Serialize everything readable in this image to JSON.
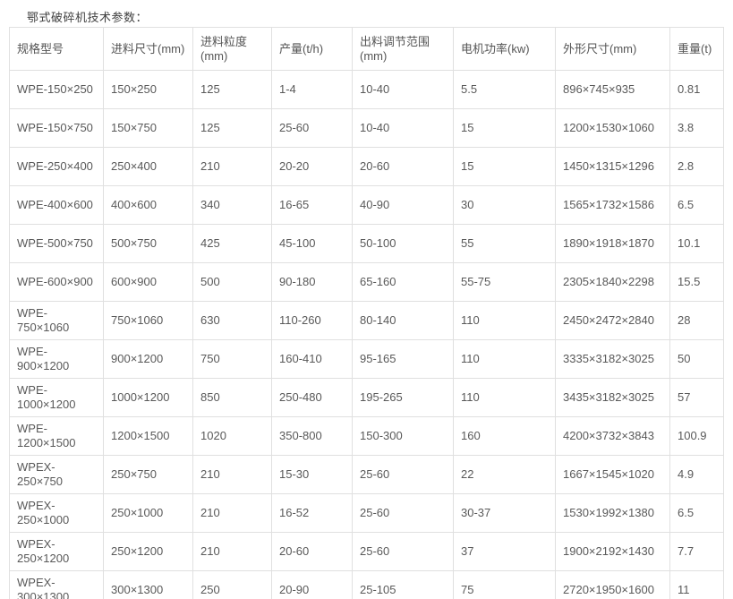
{
  "page": {
    "title": "鄂式破碎机技术参数："
  },
  "colors": {
    "background": "#ffffff",
    "border": "#e0e0e0",
    "text": "#595959",
    "title_text": "#404040"
  },
  "table": {
    "headers": [
      "规格型号",
      "进料尺寸(mm)",
      "进料粒度(mm)",
      "产量(t/h)",
      "出料调节范围(mm)",
      "电机功率(kw)",
      "外形尺寸(mm)",
      "重量(t)"
    ],
    "rows": [
      [
        "WPE-150×250",
        "150×250",
        "125",
        "1-4",
        "10-40",
        "5.5",
        "896×745×935",
        "0.81"
      ],
      [
        "WPE-150×750",
        "150×750",
        "125",
        "25-60",
        "10-40",
        "15",
        "1200×1530×1060",
        "3.8"
      ],
      [
        "WPE-250×400",
        "250×400",
        "210",
        "20-20",
        "20-60",
        "15",
        "1450×1315×1296",
        "2.8"
      ],
      [
        "WPE-400×600",
        "400×600",
        "340",
        "16-65",
        "40-90",
        "30",
        "1565×1732×1586",
        "6.5"
      ],
      [
        "WPE-500×750",
        "500×750",
        "425",
        "45-100",
        "50-100",
        "55",
        "1890×1918×1870",
        "10.1"
      ],
      [
        "WPE-600×900",
        "600×900",
        "500",
        "90-180",
        "65-160",
        "55-75",
        "2305×1840×2298",
        "15.5"
      ],
      [
        "WPE-750×1060",
        "750×1060",
        "630",
        "110-260",
        "80-140",
        "110",
        "2450×2472×2840",
        "28"
      ],
      [
        "WPE-900×1200",
        "900×1200",
        "750",
        "160-410",
        "95-165",
        "110",
        "3335×3182×3025",
        "50"
      ],
      [
        "WPE-1000×1200",
        "1000×1200",
        "850",
        "250-480",
        "195-265",
        "110",
        "3435×3182×3025",
        "57"
      ],
      [
        "WPE-1200×1500",
        "1200×1500",
        "1020",
        "350-800",
        "150-300",
        "160",
        "4200×3732×3843",
        "100.9"
      ],
      [
        "WPEX-250×750",
        "250×750",
        "210",
        "15-30",
        "25-60",
        "22",
        "1667×1545×1020",
        "4.9"
      ],
      [
        "WPEX-250×1000",
        "250×1000",
        "210",
        "16-52",
        "25-60",
        "30-37",
        "1530×1992×1380",
        "6.5"
      ],
      [
        "WPEX-250×1200",
        "250×1200",
        "210",
        "20-60",
        "25-60",
        "37",
        "1900×2192×1430",
        "7.7"
      ],
      [
        "WPEX-300×1300",
        "300×1300",
        "250",
        "20-90",
        "25-105",
        "75",
        "2720×1950×1600",
        "11"
      ]
    ]
  }
}
